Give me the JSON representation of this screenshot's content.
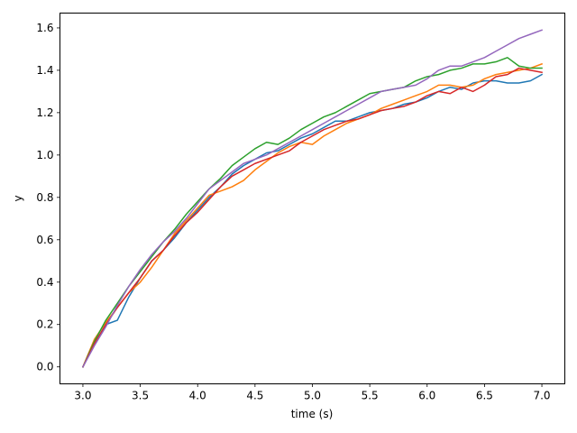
{
  "chart_data": {
    "type": "line",
    "title": "",
    "xlabel": "time (s)",
    "ylabel": "y",
    "xlim": [
      2.8,
      7.2
    ],
    "ylim": [
      -0.08,
      1.67
    ],
    "xticks": [
      3.0,
      3.5,
      4.0,
      4.5,
      5.0,
      5.5,
      6.0,
      6.5,
      7.0
    ],
    "xtick_labels": [
      "3.0",
      "3.5",
      "4.0",
      "4.5",
      "5.0",
      "5.5",
      "6.0",
      "6.5",
      "7.0"
    ],
    "yticks": [
      0.0,
      0.2,
      0.4,
      0.6,
      0.8,
      1.0,
      1.2,
      1.4,
      1.6
    ],
    "ytick_labels": [
      "0.0",
      "0.2",
      "0.4",
      "0.6",
      "0.8",
      "1.0",
      "1.2",
      "1.4",
      "1.6"
    ],
    "grid": false,
    "legend": "none",
    "x": [
      3.0,
      3.1,
      3.2,
      3.3,
      3.4,
      3.5,
      3.6,
      3.7,
      3.8,
      3.9,
      4.0,
      4.1,
      4.2,
      4.3,
      4.4,
      4.5,
      4.6,
      4.7,
      4.8,
      4.9,
      5.0,
      5.1,
      5.2,
      5.3,
      5.4,
      5.5,
      5.6,
      5.7,
      5.8,
      5.9,
      6.0,
      6.1,
      6.2,
      6.3,
      6.4,
      6.5,
      6.6,
      6.7,
      6.8,
      6.9,
      7.0
    ],
    "series": [
      {
        "color": "#1f77b4",
        "values": [
          0.0,
          0.11,
          0.2,
          0.22,
          0.33,
          0.42,
          0.5,
          0.55,
          0.61,
          0.68,
          0.74,
          0.8,
          0.85,
          0.91,
          0.95,
          0.98,
          1.01,
          1.02,
          1.05,
          1.08,
          1.1,
          1.13,
          1.16,
          1.16,
          1.18,
          1.2,
          1.21,
          1.22,
          1.24,
          1.25,
          1.27,
          1.3,
          1.32,
          1.31,
          1.34,
          1.35,
          1.35,
          1.34,
          1.34,
          1.35,
          1.38
        ]
      },
      {
        "color": "#ff7f0e",
        "values": [
          0.0,
          0.13,
          0.21,
          0.28,
          0.35,
          0.4,
          0.47,
          0.55,
          0.63,
          0.69,
          0.75,
          0.81,
          0.83,
          0.85,
          0.88,
          0.93,
          0.97,
          1.01,
          1.04,
          1.06,
          1.05,
          1.09,
          1.12,
          1.15,
          1.17,
          1.19,
          1.22,
          1.24,
          1.26,
          1.28,
          1.3,
          1.33,
          1.33,
          1.32,
          1.33,
          1.36,
          1.38,
          1.39,
          1.4,
          1.41,
          1.43
        ]
      },
      {
        "color": "#2ca02c",
        "values": [
          0.0,
          0.12,
          0.22,
          0.3,
          0.38,
          0.45,
          0.52,
          0.59,
          0.65,
          0.72,
          0.78,
          0.84,
          0.89,
          0.95,
          0.99,
          1.03,
          1.06,
          1.05,
          1.08,
          1.12,
          1.15,
          1.18,
          1.2,
          1.23,
          1.26,
          1.29,
          1.3,
          1.31,
          1.32,
          1.35,
          1.37,
          1.38,
          1.4,
          1.41,
          1.43,
          1.43,
          1.44,
          1.46,
          1.42,
          1.41,
          1.41
        ]
      },
      {
        "color": "#d62728",
        "values": [
          0.0,
          0.11,
          0.2,
          0.28,
          0.35,
          0.42,
          0.5,
          0.55,
          0.62,
          0.68,
          0.73,
          0.79,
          0.85,
          0.9,
          0.93,
          0.96,
          0.98,
          1.0,
          1.02,
          1.06,
          1.09,
          1.12,
          1.14,
          1.16,
          1.17,
          1.19,
          1.21,
          1.22,
          1.23,
          1.25,
          1.28,
          1.3,
          1.29,
          1.32,
          1.3,
          1.33,
          1.37,
          1.38,
          1.41,
          1.4,
          1.39
        ]
      },
      {
        "color": "#9467bd",
        "values": [
          0.0,
          0.1,
          0.19,
          0.29,
          0.38,
          0.46,
          0.53,
          0.59,
          0.64,
          0.7,
          0.77,
          0.84,
          0.88,
          0.92,
          0.96,
          0.98,
          1.0,
          1.03,
          1.06,
          1.09,
          1.12,
          1.15,
          1.18,
          1.21,
          1.24,
          1.27,
          1.3,
          1.31,
          1.32,
          1.33,
          1.36,
          1.4,
          1.42,
          1.42,
          1.44,
          1.46,
          1.49,
          1.52,
          1.55,
          1.57,
          1.59
        ]
      }
    ]
  }
}
